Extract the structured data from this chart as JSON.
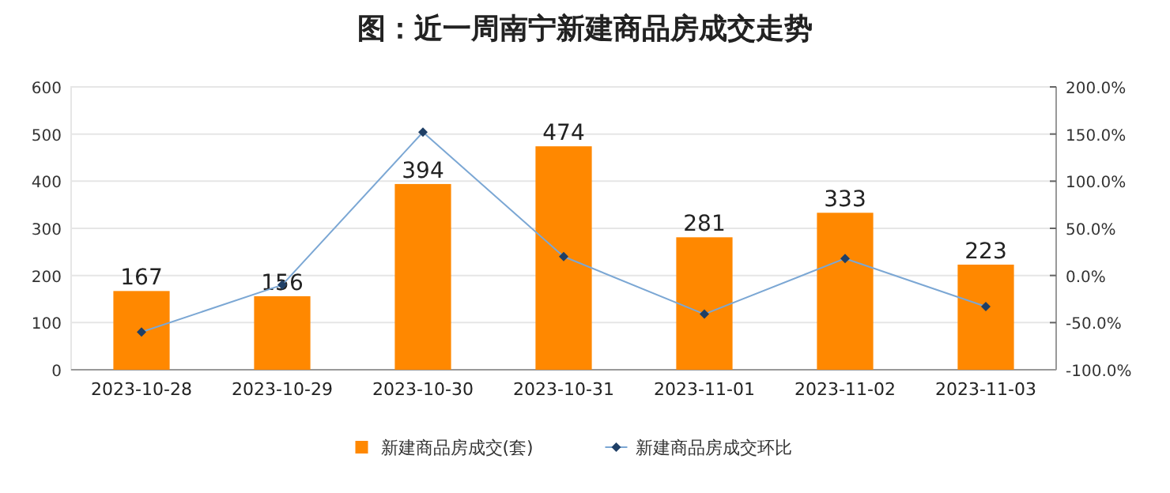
{
  "chart_data": {
    "type": "bar",
    "title": "图：近一周南宁新建商品房成交走势",
    "categories": [
      "2023-10-28",
      "2023-10-29",
      "2023-10-30",
      "2023-10-31",
      "2023-11-01",
      "2023-11-02",
      "2023-11-03"
    ],
    "series": [
      {
        "name": "新建商品房成交(套)",
        "color": "#ff8800",
        "values": [
          167,
          156,
          394,
          474,
          281,
          333,
          223
        ],
        "value_labels": [
          "167",
          "156",
          "394",
          "474",
          "281",
          "333",
          "223"
        ]
      },
      {
        "name": "新建商品房成交环比",
        "type": "line",
        "axis": "y2",
        "color": "#7ba7d4",
        "marker": "diamond",
        "values": [
          -60,
          -10,
          152,
          20,
          -41,
          18,
          -33
        ]
      }
    ],
    "ylim": [
      0,
      600
    ],
    "yticks": [
      0,
      100,
      200,
      300,
      400,
      500,
      600
    ],
    "y2lim": [
      -100,
      200
    ],
    "y2ticks": [
      {
        "value": -100,
        "label": "-100.0%"
      },
      {
        "value": -50,
        "label": "-50.0%"
      },
      {
        "value": 0,
        "label": "0.0%"
      },
      {
        "value": 50,
        "label": "50.0%"
      },
      {
        "value": 100,
        "label": "100.0%"
      },
      {
        "value": 150,
        "label": "150.0%"
      },
      {
        "value": 200,
        "label": "200.0%"
      }
    ],
    "grid": "y",
    "legend": "bottom"
  }
}
